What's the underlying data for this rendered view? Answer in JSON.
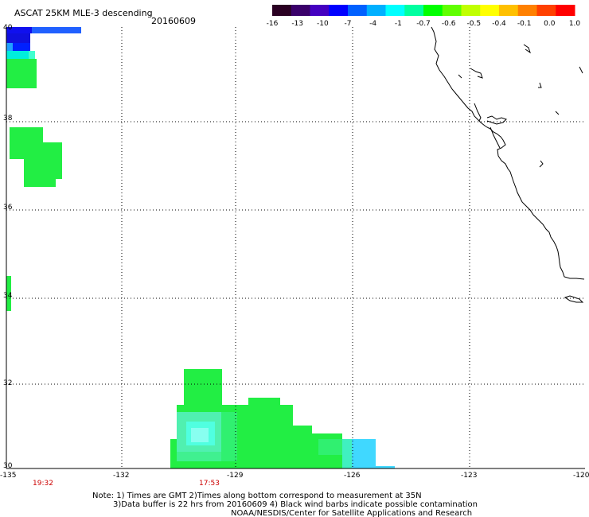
{
  "header": {
    "title": "ASCAT 25KM MLE-3 descending",
    "date": "20160609"
  },
  "colorbar": {
    "tick_labels": [
      "-16",
      "-13",
      "-10",
      "-7",
      "-4",
      "-1",
      "-0.7",
      "-0.6",
      "-0.5",
      "-0.4",
      "-0.1",
      "0.0",
      "1.0"
    ],
    "colors": [
      "#2a0022",
      "#3a006a",
      "#4400c0",
      "#0000ff",
      "#0060ff",
      "#00b0ff",
      "#00ffff",
      "#00ffa0",
      "#00ff00",
      "#60ff00",
      "#c0ff00",
      "#ffff00",
      "#ffc000",
      "#ff8000",
      "#ff4000",
      "#ff0000"
    ]
  },
  "axes": {
    "lon_labels": [
      "-135",
      "-132",
      "-129",
      "-126",
      "-123",
      "-120"
    ],
    "lat_labels": [
      "40",
      "38",
      "36",
      "34",
      "32",
      "30"
    ]
  },
  "pass_times": [
    "19:32",
    "17:53"
  ],
  "notes": {
    "line1": "Note: 1) Times are GMT 2)Times along bottom correspond to measurement at 35N",
    "line2": "3)Data buffer is 22 hrs from 20160609 4) Black wind barbs indicate possible contamination",
    "line3": "NOAA/NESDIS/Center for Satellite Applications and Research"
  },
  "colors": {
    "time_label": "#cc0000",
    "coastline": "#000000",
    "grid": "#000000"
  }
}
